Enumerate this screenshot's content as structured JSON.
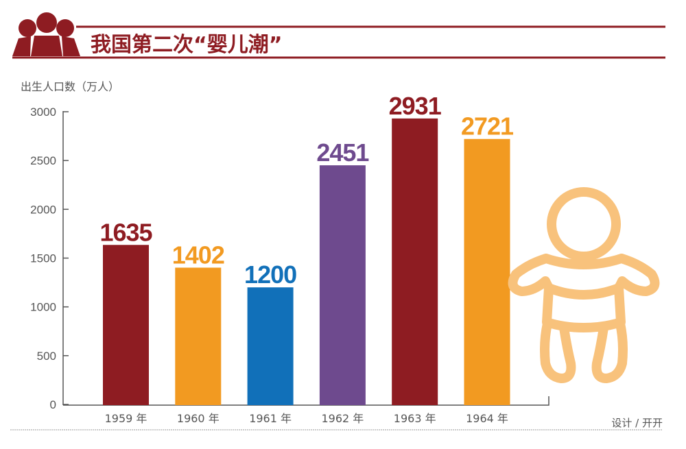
{
  "header": {
    "title": "我国第二次“婴儿潮”"
  },
  "credit": "设计 / 开开",
  "chart_data": {
    "type": "bar",
    "title": "我国第二次“婴儿潮”",
    "ylabel": "出生人口数（万人）",
    "xlabel": "",
    "categories": [
      "1959 年",
      "1960 年",
      "1961 年",
      "1962 年",
      "1963 年",
      "1964 年"
    ],
    "values": [
      1635,
      1402,
      1200,
      2451,
      2931,
      2721
    ],
    "value_labels": [
      "1635",
      "1402",
      "1200",
      "2451",
      "2931",
      "2721"
    ],
    "colors": [
      "#8e1c22",
      "#f29a21",
      "#1170b9",
      "#6e4a8e",
      "#8e1c22",
      "#f29a21"
    ],
    "ylim": [
      0,
      3000
    ],
    "yticks": [
      0,
      500,
      1000,
      1500,
      2000,
      2500,
      3000
    ],
    "ytick_labels": [
      "0",
      "500",
      "1000",
      "1500",
      "2000",
      "2500",
      "3000"
    ],
    "grid": false,
    "legend": "none"
  },
  "colors": {
    "brand": "#8e1c22",
    "baby_icon": "#f8c27c"
  }
}
